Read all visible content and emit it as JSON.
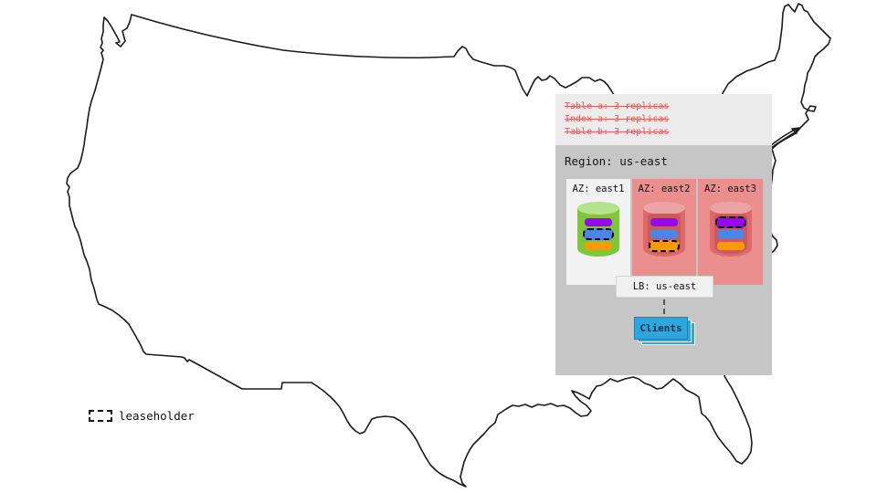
{
  "annotation": {
    "lines": [
      "Table a: 3 replicas",
      "Index a: 3 replicas",
      "Table b: 3 replicas"
    ]
  },
  "region": {
    "title": "Region: us-east",
    "azs": [
      {
        "label": "AZ: east1",
        "highlight": false,
        "cylinder": "green",
        "bars": [
          {
            "color": "purple",
            "leaseholder": false
          },
          {
            "color": "blue",
            "leaseholder": true
          },
          {
            "color": "orange",
            "leaseholder": false
          }
        ]
      },
      {
        "label": "AZ: east2",
        "highlight": true,
        "cylinder": "red",
        "bars": [
          {
            "color": "purple",
            "leaseholder": false
          },
          {
            "color": "blue",
            "leaseholder": false
          },
          {
            "color": "orange",
            "leaseholder": true
          }
        ]
      },
      {
        "label": "AZ: east3",
        "highlight": true,
        "cylinder": "red",
        "bars": [
          {
            "color": "purple",
            "leaseholder": true
          },
          {
            "color": "blue",
            "leaseholder": false
          },
          {
            "color": "orange",
            "leaseholder": false
          }
        ]
      }
    ]
  },
  "load_balancer": {
    "label": "LB: us-east"
  },
  "clients": {
    "label": "Clients"
  },
  "legend": {
    "label": "leaseholder"
  },
  "colors": {
    "annotation_text": "#e25c5c",
    "annotation_bg": "#ececec",
    "region_bg": "#c6c6c6",
    "az_normal_bg": "#f2f2f2",
    "az_highlight_bg": "#eb8e8e",
    "cylinders": {
      "green": {
        "top": "#b4e38c",
        "body": "#7fc63b",
        "inner": ""
      },
      "red": {
        "top": "#eba3a3",
        "body": "#dc6a6a",
        "inner": "#cc5a5a"
      }
    },
    "bars": {
      "purple": "#9608f0",
      "blue": "#4a86e8",
      "orange": "#ff9900"
    },
    "lb_bg": "#f1f1f1",
    "clients_bg": "#2da7de",
    "clients_border": "#1a81b5",
    "map_stroke": "#1b1b1b"
  }
}
